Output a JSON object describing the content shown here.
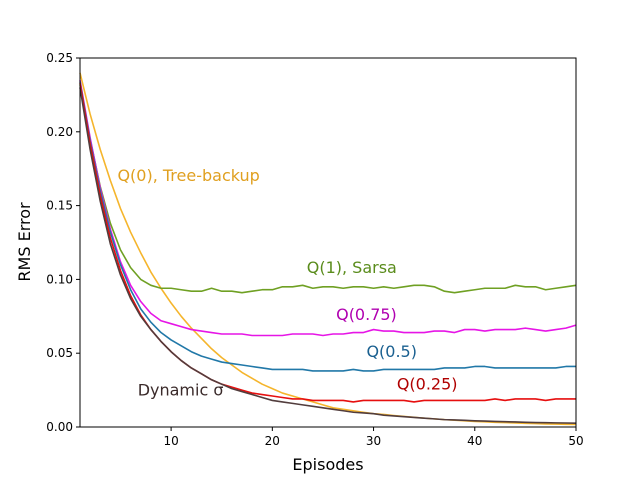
{
  "chart_data": {
    "type": "line",
    "title": "",
    "xlabel": "Episodes",
    "ylabel": "RMS Error",
    "xlim": [
      1,
      50
    ],
    "ylim": [
      0,
      0.25
    ],
    "xticks": [
      10,
      20,
      30,
      40,
      50
    ],
    "yticks": [
      0.0,
      0.05,
      0.1,
      0.15,
      0.2,
      0.25
    ],
    "ytick_labels": [
      "0.00",
      "0.05",
      "0.10",
      "0.15",
      "0.20",
      "0.25"
    ],
    "grid": false,
    "legend": "inline labels",
    "series": [
      {
        "name": "Q(0), Tree-backup",
        "color": "#f5b52c",
        "x": [
          1,
          2,
          3,
          4,
          5,
          6,
          7,
          8,
          9,
          10,
          11,
          12,
          13,
          14,
          15,
          16,
          17,
          18,
          19,
          20,
          21,
          22,
          23,
          24,
          25,
          26,
          27,
          28,
          29,
          30,
          31,
          32,
          33,
          34,
          35,
          36,
          37,
          38,
          39,
          40,
          41,
          42,
          43,
          44,
          45,
          46,
          47,
          48,
          49,
          50
        ],
        "values": [
          0.24,
          0.212,
          0.188,
          0.167,
          0.148,
          0.132,
          0.118,
          0.105,
          0.094,
          0.084,
          0.075,
          0.067,
          0.06,
          0.053,
          0.047,
          0.042,
          0.037,
          0.033,
          0.029,
          0.026,
          0.023,
          0.021,
          0.019,
          0.017,
          0.015,
          0.013,
          0.012,
          0.011,
          0.01,
          0.009,
          0.0085,
          0.0078,
          0.0072,
          0.0066,
          0.006,
          0.0055,
          0.005,
          0.0046,
          0.0042,
          0.0038,
          0.0035,
          0.0032,
          0.003,
          0.0027,
          0.0025,
          0.0023,
          0.0021,
          0.002,
          0.0018,
          0.0017
        ]
      },
      {
        "name": "Q(1), Sarsa",
        "color": "#6fa023",
        "x": [
          1,
          2,
          3,
          4,
          5,
          6,
          7,
          8,
          9,
          10,
          11,
          12,
          13,
          14,
          15,
          16,
          17,
          18,
          19,
          20,
          21,
          22,
          23,
          24,
          25,
          26,
          27,
          28,
          29,
          30,
          31,
          32,
          33,
          34,
          35,
          36,
          37,
          38,
          39,
          40,
          41,
          42,
          43,
          44,
          45,
          46,
          47,
          48,
          49,
          50
        ],
        "values": [
          0.232,
          0.195,
          0.163,
          0.138,
          0.12,
          0.108,
          0.1,
          0.096,
          0.094,
          0.094,
          0.093,
          0.092,
          0.092,
          0.094,
          0.092,
          0.092,
          0.091,
          0.092,
          0.093,
          0.093,
          0.095,
          0.095,
          0.096,
          0.094,
          0.095,
          0.095,
          0.094,
          0.095,
          0.095,
          0.094,
          0.095,
          0.094,
          0.095,
          0.096,
          0.096,
          0.095,
          0.092,
          0.091,
          0.092,
          0.093,
          0.094,
          0.094,
          0.094,
          0.096,
          0.095,
          0.095,
          0.093,
          0.094,
          0.095,
          0.096
        ]
      },
      {
        "name": "Q(0.75)",
        "color": "#e615e6",
        "x": [
          1,
          2,
          3,
          4,
          5,
          6,
          7,
          8,
          9,
          10,
          11,
          12,
          13,
          14,
          15,
          16,
          17,
          18,
          19,
          20,
          21,
          22,
          23,
          24,
          25,
          26,
          27,
          28,
          29,
          30,
          31,
          32,
          33,
          34,
          35,
          36,
          37,
          38,
          39,
          40,
          41,
          42,
          43,
          44,
          45,
          46,
          47,
          48,
          49,
          50
        ],
        "values": [
          0.235,
          0.196,
          0.162,
          0.134,
          0.112,
          0.096,
          0.085,
          0.077,
          0.072,
          0.07,
          0.068,
          0.066,
          0.065,
          0.064,
          0.063,
          0.063,
          0.063,
          0.062,
          0.062,
          0.062,
          0.062,
          0.063,
          0.063,
          0.063,
          0.062,
          0.063,
          0.063,
          0.064,
          0.064,
          0.066,
          0.065,
          0.065,
          0.064,
          0.064,
          0.064,
          0.065,
          0.065,
          0.064,
          0.066,
          0.066,
          0.065,
          0.066,
          0.066,
          0.066,
          0.067,
          0.066,
          0.065,
          0.066,
          0.067,
          0.069
        ]
      },
      {
        "name": "Q(0.5)",
        "color": "#2178a8",
        "x": [
          1,
          2,
          3,
          4,
          5,
          6,
          7,
          8,
          9,
          10,
          11,
          12,
          13,
          14,
          15,
          16,
          17,
          18,
          19,
          20,
          21,
          22,
          23,
          24,
          25,
          26,
          27,
          28,
          29,
          30,
          31,
          32,
          33,
          34,
          35,
          36,
          37,
          38,
          39,
          40,
          41,
          42,
          43,
          44,
          45,
          46,
          47,
          48,
          49,
          50
        ],
        "values": [
          0.234,
          0.194,
          0.16,
          0.132,
          0.11,
          0.093,
          0.08,
          0.071,
          0.064,
          0.059,
          0.055,
          0.051,
          0.048,
          0.046,
          0.044,
          0.043,
          0.042,
          0.041,
          0.04,
          0.039,
          0.039,
          0.039,
          0.039,
          0.038,
          0.038,
          0.038,
          0.038,
          0.039,
          0.038,
          0.038,
          0.039,
          0.039,
          0.039,
          0.039,
          0.039,
          0.039,
          0.04,
          0.04,
          0.04,
          0.041,
          0.041,
          0.04,
          0.04,
          0.04,
          0.04,
          0.04,
          0.04,
          0.04,
          0.041,
          0.041
        ]
      },
      {
        "name": "Q(0.25)",
        "color": "#e60f0f",
        "x": [
          1,
          2,
          3,
          4,
          5,
          6,
          7,
          8,
          9,
          10,
          11,
          12,
          13,
          14,
          15,
          16,
          17,
          18,
          19,
          20,
          21,
          22,
          23,
          24,
          25,
          26,
          27,
          28,
          29,
          30,
          31,
          32,
          33,
          34,
          35,
          36,
          37,
          38,
          39,
          40,
          41,
          42,
          43,
          44,
          45,
          46,
          47,
          48,
          49,
          50
        ],
        "values": [
          0.233,
          0.192,
          0.157,
          0.128,
          0.106,
          0.089,
          0.076,
          0.066,
          0.058,
          0.051,
          0.045,
          0.04,
          0.036,
          0.032,
          0.029,
          0.027,
          0.025,
          0.023,
          0.022,
          0.021,
          0.02,
          0.019,
          0.019,
          0.018,
          0.018,
          0.018,
          0.018,
          0.017,
          0.018,
          0.018,
          0.018,
          0.018,
          0.018,
          0.017,
          0.018,
          0.018,
          0.018,
          0.018,
          0.018,
          0.018,
          0.018,
          0.019,
          0.018,
          0.019,
          0.019,
          0.019,
          0.018,
          0.019,
          0.019,
          0.019
        ]
      },
      {
        "name": "Dynamic σ",
        "color": "#523d3d",
        "x": [
          1,
          2,
          3,
          4,
          5,
          6,
          7,
          8,
          9,
          10,
          11,
          12,
          13,
          14,
          15,
          16,
          17,
          18,
          19,
          20,
          21,
          22,
          23,
          24,
          25,
          26,
          27,
          28,
          29,
          30,
          31,
          32,
          33,
          34,
          35,
          36,
          37,
          38,
          39,
          40,
          41,
          42,
          43,
          44,
          45,
          46,
          47,
          48,
          49,
          50
        ],
        "values": [
          0.23,
          0.188,
          0.153,
          0.124,
          0.103,
          0.087,
          0.075,
          0.066,
          0.058,
          0.051,
          0.045,
          0.04,
          0.036,
          0.032,
          0.029,
          0.026,
          0.024,
          0.022,
          0.02,
          0.018,
          0.017,
          0.016,
          0.015,
          0.014,
          0.013,
          0.012,
          0.011,
          0.01,
          0.0095,
          0.009,
          0.008,
          0.0075,
          0.007,
          0.0065,
          0.006,
          0.0055,
          0.005,
          0.0048,
          0.0045,
          0.0042,
          0.004,
          0.0038,
          0.0036,
          0.0034,
          0.0032,
          0.003,
          0.0029,
          0.0028,
          0.0027,
          0.0026
        ]
      }
    ],
    "annotations": [
      {
        "text": "Q(0), Tree-backup",
        "series": "Q(0), Tree-backup",
        "color": "#e0a020",
        "x": 4.7,
        "y": 0.1665
      },
      {
        "text": "Q(1), Sarsa",
        "series": "Q(1), Sarsa",
        "color": "#5a8c1c",
        "x": 23.4,
        "y": 0.1045
      },
      {
        "text": "Q(0.75)",
        "series": "Q(0.75)",
        "color": "#b000b0",
        "x": 26.3,
        "y": 0.0725
      },
      {
        "text": "Q(0.5)",
        "series": "Q(0.5)",
        "color": "#1a6090",
        "x": 29.3,
        "y": 0.0475
      },
      {
        "text": "Q(0.25)",
        "series": "Q(0.25)",
        "color": "#b00000",
        "x": 32.3,
        "y": 0.0255
      },
      {
        "text": "Dynamic σ",
        "series": "Dynamic σ",
        "color": "#3a2a2a",
        "x": 6.7,
        "y": 0.0215
      }
    ]
  }
}
